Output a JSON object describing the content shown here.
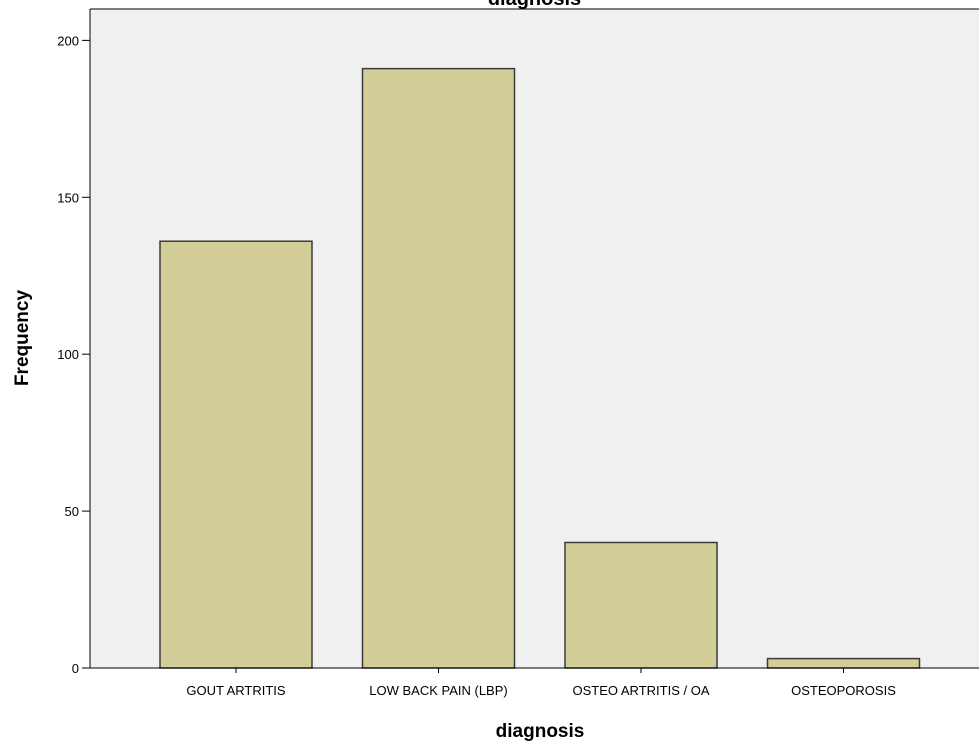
{
  "chart_data": {
    "type": "bar",
    "title": "diagnosis",
    "xlabel": "diagnosis",
    "ylabel": "Frequency",
    "categories": [
      "GOUT ARTRITIS",
      "LOW BACK PAIN (LBP)",
      "OSTEO ARTRITIS / OA",
      "OSTEOPOROSIS"
    ],
    "values": [
      136,
      191,
      40,
      3
    ],
    "ylim": [
      0,
      210
    ],
    "yticks": [
      0,
      50,
      100,
      150,
      200
    ],
    "grid": false,
    "legend": "none"
  },
  "colors": {
    "plot_background": "#f0f0f0",
    "bar_fill": "#d3ce97",
    "bar_stroke": "#3a3a3a",
    "axis": "#000000"
  }
}
